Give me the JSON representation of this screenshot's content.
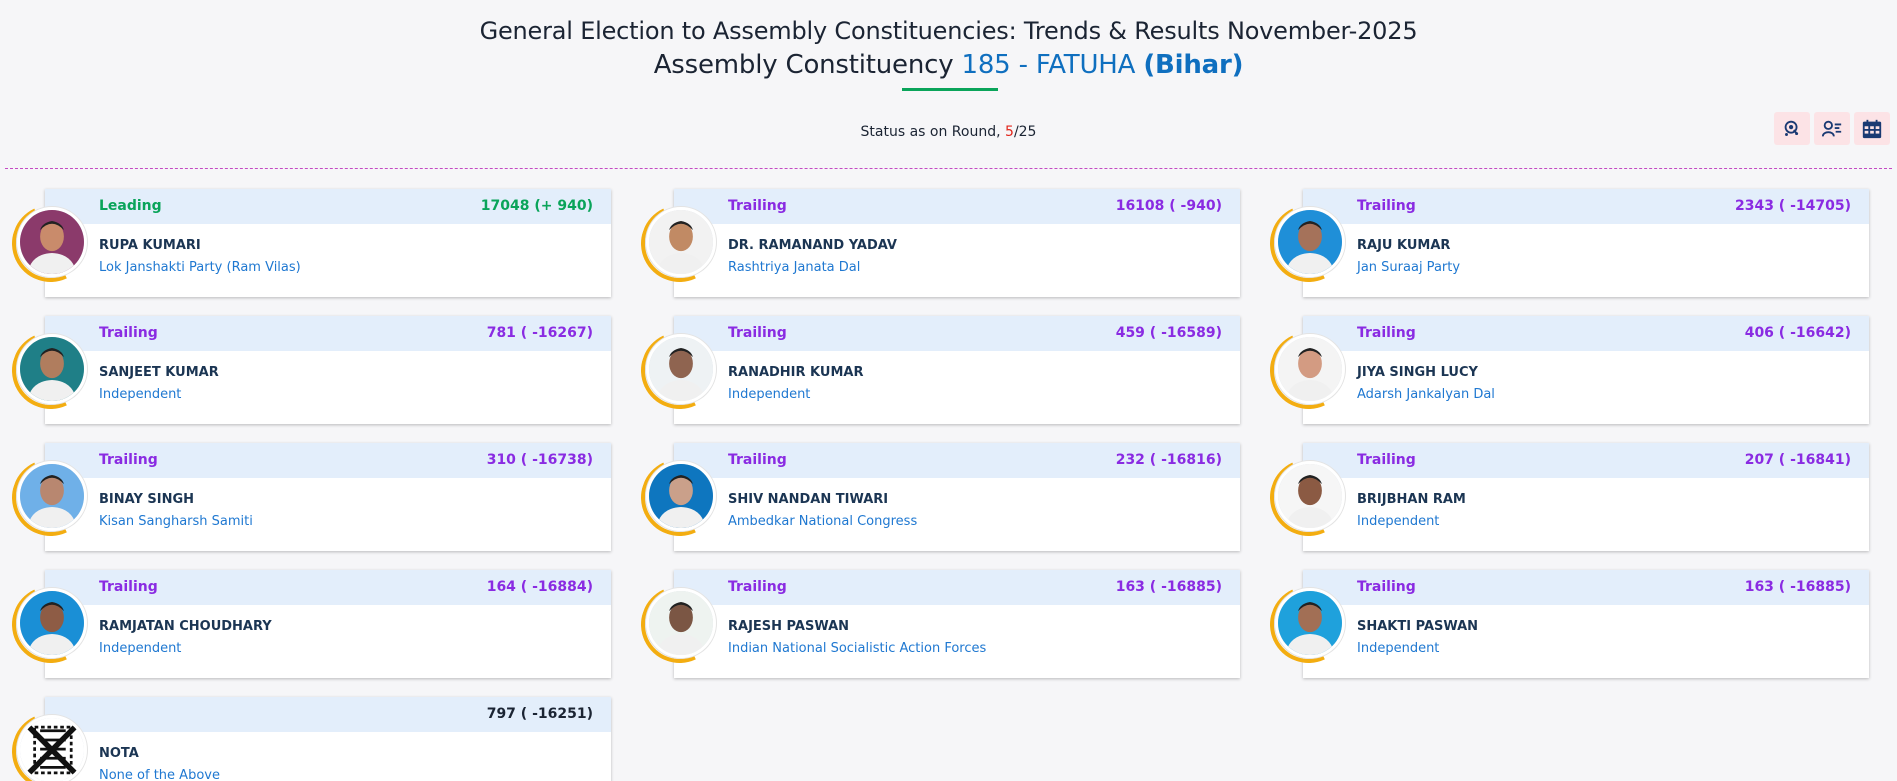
{
  "header": {
    "title_line1": "General Election to Assembly Constituencies: Trends & Results November-2025",
    "title_prefix": "Assembly Constituency",
    "constituency": "185 - FATUHA",
    "state": "(Bihar)"
  },
  "status": {
    "label": "Status as on Round,",
    "current_round": "5",
    "total_rounds": "/25"
  },
  "toolbar": {
    "buttons": [
      {
        "icon": "map-pin-icon"
      },
      {
        "icon": "user-list-icon"
      },
      {
        "icon": "calendar-table-icon"
      }
    ]
  },
  "colors": {
    "leading": "#0aa45a",
    "trailing": "#8a2be2",
    "accent": "#0f6fbf",
    "ring": "#f3ad11",
    "header_band": "#e3eefb"
  },
  "candidates": [
    {
      "status": "Leading",
      "votes": "17048 (+ 940)",
      "name": "RUPA KUMARI",
      "party": "Lok Janshakti Party (Ram Vilas)",
      "photo_bg": "#8b3a6b",
      "photo_face": "#c98b6b"
    },
    {
      "status": "Trailing",
      "votes": "16108 ( -940)",
      "name": "DR. RAMANAND YADAV",
      "party": "Rashtriya Janata Dal",
      "photo_bg": "#f2f2f2",
      "photo_face": "#c18a64"
    },
    {
      "status": "Trailing",
      "votes": "2343 ( -14705)",
      "name": "RAJU KUMAR",
      "party": "Jan Suraaj Party",
      "photo_bg": "#1f8fd8",
      "photo_face": "#a5725a"
    },
    {
      "status": "Trailing",
      "votes": "781 ( -16267)",
      "name": "SANJEET KUMAR",
      "party": "Independent",
      "photo_bg": "#1f7f87",
      "photo_face": "#b07d5e"
    },
    {
      "status": "Trailing",
      "votes": "459 ( -16589)",
      "name": "RANADHIR KUMAR",
      "party": "Independent",
      "photo_bg": "#eef2f4",
      "photo_face": "#8f6450"
    },
    {
      "status": "Trailing",
      "votes": "406 ( -16642)",
      "name": "JIYA SINGH LUCY",
      "party": "Adarsh Jankalyan Dal",
      "photo_bg": "#f4f4f4",
      "photo_face": "#d39b82"
    },
    {
      "status": "Trailing",
      "votes": "310 ( -16738)",
      "name": "BINAY SINGH",
      "party": "Kisan Sangharsh Samiti",
      "photo_bg": "#6fb0e8",
      "photo_face": "#b88770"
    },
    {
      "status": "Trailing",
      "votes": "232 ( -16816)",
      "name": "SHIV NANDAN TIWARI",
      "party": "Ambedkar National Congress",
      "photo_bg": "#0e76bf",
      "photo_face": "#caa08a"
    },
    {
      "status": "Trailing",
      "votes": "207 ( -16841)",
      "name": "BRIJBHAN RAM",
      "party": "Independent",
      "photo_bg": "#f6f6f6",
      "photo_face": "#8b5a43"
    },
    {
      "status": "Trailing",
      "votes": "164 ( -16884)",
      "name": "RAMJATAN CHOUDHARY",
      "party": "Independent",
      "photo_bg": "#1a8fd6",
      "photo_face": "#8e5c45"
    },
    {
      "status": "Trailing",
      "votes": "163 ( -16885)",
      "name": "RAJESH PASWAN",
      "party": "Indian National Socialistic Action Forces",
      "photo_bg": "#eef3f0",
      "photo_face": "#7b5644"
    },
    {
      "status": "Trailing",
      "votes": "163 ( -16885)",
      "name": "SHAKTI PASWAN",
      "party": "Independent",
      "photo_bg": "#1fa1dc",
      "photo_face": "#a26f55"
    },
    {
      "status": "",
      "votes": "797 ( -16251)",
      "name": "NOTA",
      "party": "None of the Above",
      "photo_bg": "#ffffff",
      "photo_face": "#ffffff"
    }
  ]
}
